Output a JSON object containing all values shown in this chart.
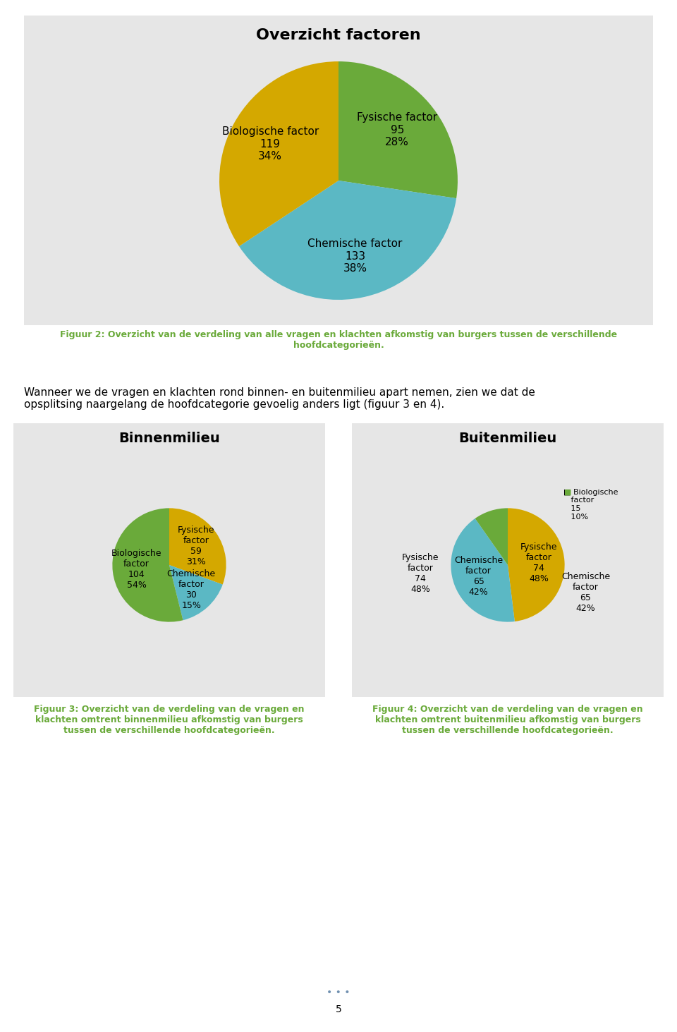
{
  "page_bg": "#ffffff",
  "chart_bg": "#e6e6e6",
  "title1": "Overzicht factoren",
  "pie1": {
    "values": [
      95,
      133,
      119
    ],
    "labels": [
      "Fysische factor\n95\n28%",
      "Chemische factor\n133\n38%",
      "Biologische factor\n119\n34%"
    ],
    "colors": [
      "#6aaa3a",
      "#5bb8c4",
      "#d4a800"
    ],
    "startangle": 90
  },
  "caption1": "Figuur 2: Overzicht van de verdeling van alle vragen en klachten afkomstig van burgers tussen de verschillende\nhoofdcategorieën.",
  "body_text": "Wanneer we de vragen en klachten rond binnen- en buitenmilieu apart nemen, zien we dat de\nopsplitsing naargelang de hoofdcategorie gevoelig anders ligt (figuur 3 en 4).",
  "title2": "Binnenmilieu",
  "pie2": {
    "values": [
      59,
      30,
      104
    ],
    "labels": [
      "Fysische\nfactor\n59\n31%",
      "Chemische\nfactor\n30\n15%",
      "Biologische\nfactor\n104\n54%"
    ],
    "colors": [
      "#d4a800",
      "#5bb8c4",
      "#6aaa3a"
    ],
    "startangle": 90
  },
  "caption2": "Figuur 3: Overzicht van de verdeling van de vragen en\nklachten omtrent binnenmilieu afkomstig van burgers\ntussen de verschillende hoofdcategorieën.",
  "title3": "Buitenmilieu",
  "pie3": {
    "values": [
      74,
      65,
      15
    ],
    "labels": [
      "Fysische\nfactor\n74\n48%",
      "Chemische\nfactor\n65\n42%",
      "Biologische\nfactor\n15\n10%"
    ],
    "colors": [
      "#d4a800",
      "#5bb8c4",
      "#6aaa3a"
    ],
    "startangle": 90
  },
  "caption3": "Figuur 4: Overzicht van de verdeling van de vragen en\nklachten omtrent buitenmilieu afkomstig van burgers\ntussen de verschillende hoofdcategorieën.",
  "caption_color": "#6aaa3a",
  "label_color": "#000000",
  "title1_fontsize": 16,
  "title2_fontsize": 14,
  "label_fontsize1": 11,
  "label_fontsize2": 9,
  "caption_fontsize": 9,
  "body_fontsize": 11,
  "dots_color": "#7090b0",
  "page_number": "5",
  "bio_legend_color": "#6aaa3a"
}
